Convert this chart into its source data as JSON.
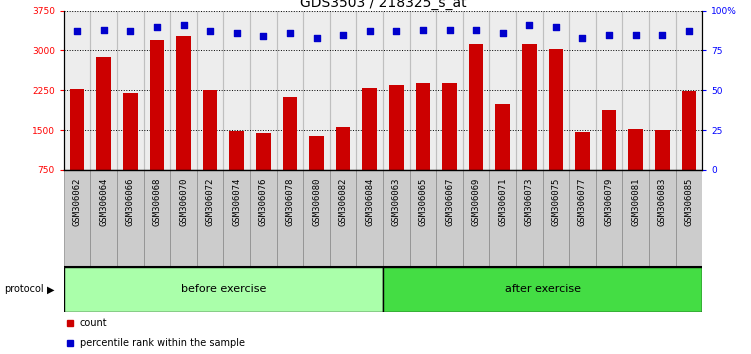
{
  "title": "GDS3503 / 218325_s_at",
  "samples": [
    "GSM306062",
    "GSM306064",
    "GSM306066",
    "GSM306068",
    "GSM306070",
    "GSM306072",
    "GSM306074",
    "GSM306076",
    "GSM306078",
    "GSM306080",
    "GSM306082",
    "GSM306084",
    "GSM306063",
    "GSM306065",
    "GSM306067",
    "GSM306069",
    "GSM306071",
    "GSM306073",
    "GSM306075",
    "GSM306077",
    "GSM306079",
    "GSM306081",
    "GSM306083",
    "GSM306085"
  ],
  "counts": [
    2280,
    2870,
    2200,
    3200,
    3270,
    2250,
    1480,
    1450,
    2130,
    1390,
    1560,
    2300,
    2340,
    2380,
    2380,
    3130,
    2000,
    3130,
    3030,
    1470,
    1880,
    1520,
    1500,
    2230
  ],
  "percentile": [
    87,
    88,
    87,
    90,
    91,
    87,
    86,
    84,
    86,
    83,
    85,
    87,
    87,
    88,
    88,
    88,
    86,
    91,
    90,
    83,
    85,
    85,
    85,
    87
  ],
  "n_before": 12,
  "n_after": 12,
  "bar_color": "#cc0000",
  "dot_color": "#0000cc",
  "ylim_left": [
    750,
    3750
  ],
  "ylim_right": [
    0,
    100
  ],
  "yticks_left": [
    750,
    1500,
    2250,
    3000,
    3750
  ],
  "yticks_right": [
    0,
    25,
    50,
    75,
    100
  ],
  "grid_vals": [
    1500,
    2250,
    3000
  ],
  "before_color": "#aaffaa",
  "after_color": "#44dd44",
  "protocol_label": "protocol",
  "before_label": "before exercise",
  "after_label": "after exercise",
  "legend_count": "count",
  "legend_pct": "percentile rank within the sample",
  "title_fontsize": 10,
  "tick_fontsize": 6.5,
  "label_fontsize": 8,
  "xtick_bg": "#cccccc"
}
